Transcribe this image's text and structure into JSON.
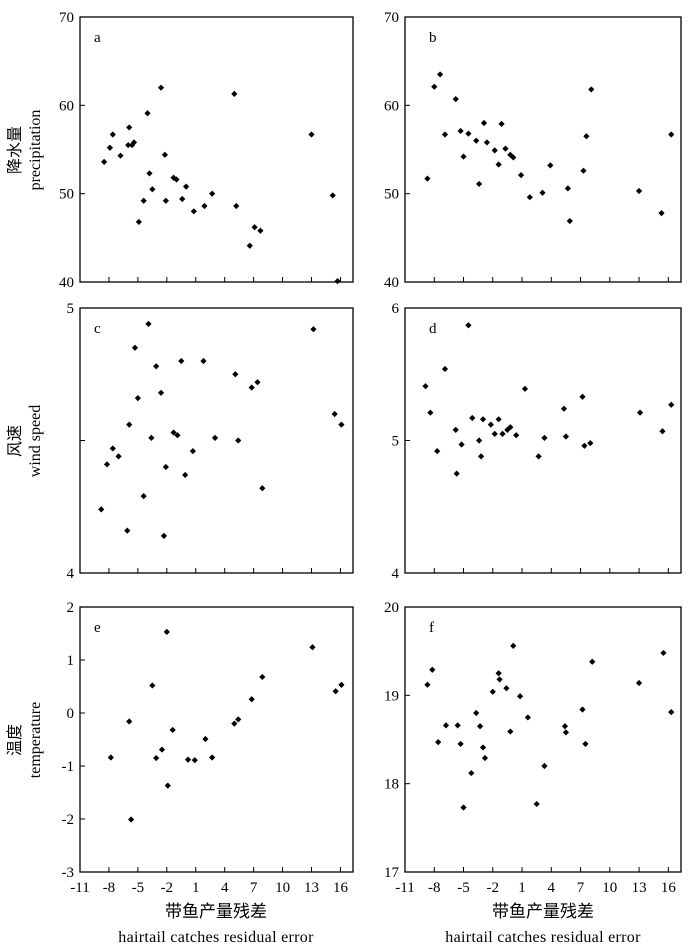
{
  "chart_data": [
    {
      "id": "a",
      "type": "scatter",
      "panel_label": "a",
      "ylabel_cn": "降水量",
      "ylabel_en": "precipitation",
      "ylim": [
        40,
        70
      ],
      "yticks": [
        40,
        50,
        60,
        70
      ],
      "xlim": [
        -11,
        17.3
      ],
      "xticks": [
        -11,
        -8,
        -5,
        -2,
        1,
        4,
        7,
        10,
        13,
        16
      ],
      "show_xticklabels": false,
      "points": [
        [
          -8.5,
          53.6
        ],
        [
          -7.9,
          55.2
        ],
        [
          -7.6,
          56.7
        ],
        [
          -6.8,
          54.3
        ],
        [
          -6.0,
          55.5
        ],
        [
          -5.9,
          57.5
        ],
        [
          -5.6,
          55.5
        ],
        [
          -5.4,
          55.8
        ],
        [
          -4.9,
          46.8
        ],
        [
          -4.4,
          49.2
        ],
        [
          -4.0,
          59.1
        ],
        [
          -3.8,
          52.3
        ],
        [
          -3.5,
          50.5
        ],
        [
          -2.6,
          62.0
        ],
        [
          -2.2,
          54.4
        ],
        [
          -2.1,
          49.2
        ],
        [
          -1.3,
          51.8
        ],
        [
          -1.0,
          51.6
        ],
        [
          -0.4,
          49.4
        ],
        [
          0.0,
          50.8
        ],
        [
          0.8,
          48.0
        ],
        [
          1.9,
          48.6
        ],
        [
          2.7,
          50.0
        ],
        [
          5.0,
          61.3
        ],
        [
          5.2,
          48.6
        ],
        [
          6.6,
          44.1
        ],
        [
          7.1,
          46.2
        ],
        [
          7.7,
          45.8
        ],
        [
          13.0,
          56.7
        ],
        [
          15.2,
          49.8
        ],
        [
          15.7,
          40.1
        ]
      ]
    },
    {
      "id": "b",
      "type": "scatter",
      "panel_label": "b",
      "ylabel_cn": "",
      "ylabel_en": "",
      "ylim": [
        40,
        70
      ],
      "yticks": [
        40,
        50,
        60,
        70
      ],
      "xlim": [
        -11,
        17.3
      ],
      "xticks": [
        -11,
        -8,
        -5,
        -2,
        1,
        4,
        7,
        10,
        13,
        16
      ],
      "show_xticklabels": false,
      "points": [
        [
          -8.7,
          51.7
        ],
        [
          -8.0,
          62.1
        ],
        [
          -7.4,
          63.5
        ],
        [
          -6.9,
          56.7
        ],
        [
          -5.8,
          60.7
        ],
        [
          -5.3,
          57.1
        ],
        [
          -5.0,
          54.2
        ],
        [
          -4.5,
          56.8
        ],
        [
          -3.7,
          56.0
        ],
        [
          -3.4,
          51.1
        ],
        [
          -2.9,
          58.0
        ],
        [
          -2.6,
          55.8
        ],
        [
          -1.8,
          54.9
        ],
        [
          -1.4,
          53.3
        ],
        [
          -1.1,
          57.9
        ],
        [
          -0.7,
          55.1
        ],
        [
          -0.2,
          54.4
        ],
        [
          0.1,
          54.1
        ],
        [
          0.9,
          52.1
        ],
        [
          1.8,
          49.6
        ],
        [
          3.1,
          50.1
        ],
        [
          3.9,
          53.2
        ],
        [
          5.7,
          50.6
        ],
        [
          5.9,
          46.9
        ],
        [
          7.3,
          52.6
        ],
        [
          7.6,
          56.5
        ],
        [
          8.1,
          61.8
        ],
        [
          13.0,
          50.3
        ],
        [
          15.3,
          47.8
        ],
        [
          16.3,
          56.7
        ]
      ]
    },
    {
      "id": "c",
      "type": "scatter",
      "panel_label": "c",
      "ylabel_cn": "风速",
      "ylabel_en": "wind speed",
      "ylim": [
        4,
        5
      ],
      "yticks": [
        4,
        5
      ],
      "y_tick_values": [
        4,
        4.5,
        5
      ],
      "show_mid_ytick_label": false,
      "xlim": [
        -11,
        17.3
      ],
      "xticks": [
        -11,
        -8,
        -5,
        -2,
        1,
        4,
        7,
        10,
        13,
        16
      ],
      "show_xticklabels": false,
      "points": [
        [
          -8.8,
          4.24
        ],
        [
          -8.2,
          4.41
        ],
        [
          -7.6,
          4.47
        ],
        [
          -7.0,
          4.44
        ],
        [
          -6.1,
          4.16
        ],
        [
          -5.9,
          4.56
        ],
        [
          -5.3,
          4.85
        ],
        [
          -5.0,
          4.66
        ],
        [
          -4.4,
          4.29
        ],
        [
          -3.9,
          4.94
        ],
        [
          -3.6,
          4.51
        ],
        [
          -3.1,
          4.78
        ],
        [
          -2.6,
          4.68
        ],
        [
          -2.3,
          4.14
        ],
        [
          -2.1,
          4.4
        ],
        [
          -1.3,
          4.53
        ],
        [
          -0.9,
          4.52
        ],
        [
          -0.5,
          4.8
        ],
        [
          -0.1,
          4.37
        ],
        [
          0.7,
          4.46
        ],
        [
          1.8,
          4.8
        ],
        [
          3.0,
          4.51
        ],
        [
          5.1,
          4.75
        ],
        [
          5.4,
          4.5
        ],
        [
          6.8,
          4.7
        ],
        [
          7.4,
          4.72
        ],
        [
          7.9,
          4.32
        ],
        [
          13.2,
          4.92
        ],
        [
          15.4,
          4.6
        ],
        [
          16.1,
          4.56
        ]
      ]
    },
    {
      "id": "d",
      "type": "scatter",
      "panel_label": "d",
      "ylabel_cn": "",
      "ylabel_en": "",
      "ylim": [
        4,
        6
      ],
      "yticks": [
        4,
        5,
        6
      ],
      "xlim": [
        -11,
        17.3
      ],
      "xticks": [
        -11,
        -8,
        -5,
        -2,
        1,
        4,
        7,
        10,
        13,
        16
      ],
      "show_xticklabels": false,
      "points": [
        [
          -8.9,
          5.41
        ],
        [
          -8.4,
          5.21
        ],
        [
          -7.7,
          4.92
        ],
        [
          -6.9,
          5.54
        ],
        [
          -5.8,
          5.08
        ],
        [
          -5.7,
          4.75
        ],
        [
          -5.2,
          4.97
        ],
        [
          -4.5,
          5.87
        ],
        [
          -4.1,
          5.17
        ],
        [
          -3.4,
          5.0
        ],
        [
          -3.2,
          4.88
        ],
        [
          -3.0,
          5.16
        ],
        [
          -2.2,
          5.12
        ],
        [
          -1.8,
          5.05
        ],
        [
          -1.4,
          5.16
        ],
        [
          -1.0,
          5.05
        ],
        [
          -0.5,
          5.08
        ],
        [
          -0.2,
          5.1
        ],
        [
          0.4,
          5.04
        ],
        [
          1.3,
          5.39
        ],
        [
          2.7,
          4.88
        ],
        [
          3.3,
          5.02
        ],
        [
          5.3,
          5.24
        ],
        [
          5.5,
          5.03
        ],
        [
          7.2,
          5.33
        ],
        [
          7.4,
          4.96
        ],
        [
          8.0,
          4.98
        ],
        [
          13.1,
          5.21
        ],
        [
          15.4,
          5.07
        ],
        [
          16.3,
          5.27
        ]
      ]
    },
    {
      "id": "e",
      "type": "scatter",
      "panel_label": "e",
      "ylabel_cn": "温度",
      "ylabel_en": "temperature",
      "ylim": [
        -3,
        2
      ],
      "yticks": [
        -3,
        -2,
        -1,
        0,
        1,
        2
      ],
      "xlim": [
        -11,
        17.3
      ],
      "xticks": [
        -11,
        -8,
        -5,
        -2,
        1,
        4,
        7,
        10,
        13,
        16
      ],
      "show_xticklabels": true,
      "xtick_labels": [
        "-11",
        "-8",
        "-5",
        "-2",
        "1",
        "4",
        "7",
        "10",
        "13",
        "16"
      ],
      "points": [
        [
          -7.8,
          -0.84
        ],
        [
          -5.9,
          -0.16
        ],
        [
          -5.7,
          -2.01
        ],
        [
          -3.5,
          0.52
        ],
        [
          -3.1,
          -0.85
        ],
        [
          -2.5,
          -0.69
        ],
        [
          -2.0,
          1.53
        ],
        [
          -1.9,
          -1.37
        ],
        [
          -1.4,
          -0.32
        ],
        [
          0.2,
          -0.88
        ],
        [
          0.9,
          -0.89
        ],
        [
          2.0,
          -0.49
        ],
        [
          2.7,
          -0.84
        ],
        [
          5.0,
          -0.2
        ],
        [
          5.4,
          -0.12
        ],
        [
          6.8,
          0.26
        ],
        [
          7.9,
          0.68
        ],
        [
          13.1,
          1.24
        ],
        [
          15.5,
          0.41
        ],
        [
          16.1,
          0.53
        ]
      ]
    },
    {
      "id": "f",
      "type": "scatter",
      "panel_label": "f",
      "ylabel_cn": "",
      "ylabel_en": "",
      "ylim": [
        17,
        20
      ],
      "yticks": [
        17,
        18,
        19,
        20
      ],
      "xlim": [
        -11,
        17.3
      ],
      "xticks": [
        -11,
        -8,
        -5,
        -2,
        1,
        4,
        7,
        10,
        13,
        16
      ],
      "show_xticklabels": true,
      "xtick_labels": [
        "-11",
        "-8",
        "-5",
        "-2",
        "1",
        "4",
        "7",
        "10",
        "13",
        "16"
      ],
      "points": [
        [
          -8.7,
          19.12
        ],
        [
          -8.2,
          19.29
        ],
        [
          -7.6,
          18.47
        ],
        [
          -6.8,
          18.66
        ],
        [
          -5.6,
          18.66
        ],
        [
          -5.3,
          18.45
        ],
        [
          -5.0,
          17.73
        ],
        [
          -4.2,
          18.12
        ],
        [
          -3.7,
          18.8
        ],
        [
          -3.3,
          18.65
        ],
        [
          -3.0,
          18.41
        ],
        [
          -2.8,
          18.29
        ],
        [
          -2.0,
          19.04
        ],
        [
          -1.4,
          19.25
        ],
        [
          -1.3,
          19.18
        ],
        [
          -0.6,
          19.08
        ],
        [
          -0.2,
          18.59
        ],
        [
          0.1,
          19.56
        ],
        [
          0.8,
          18.99
        ],
        [
          1.6,
          18.75
        ],
        [
          2.5,
          17.77
        ],
        [
          3.3,
          18.2
        ],
        [
          5.4,
          18.65
        ],
        [
          5.5,
          18.58
        ],
        [
          7.2,
          18.84
        ],
        [
          7.5,
          18.45
        ],
        [
          8.2,
          19.38
        ],
        [
          13.0,
          19.14
        ],
        [
          15.5,
          19.48
        ],
        [
          16.3,
          18.81
        ]
      ]
    }
  ],
  "x_title_cn": "带鱼产量残差",
  "x_title_en": "hairtail catches residual error"
}
